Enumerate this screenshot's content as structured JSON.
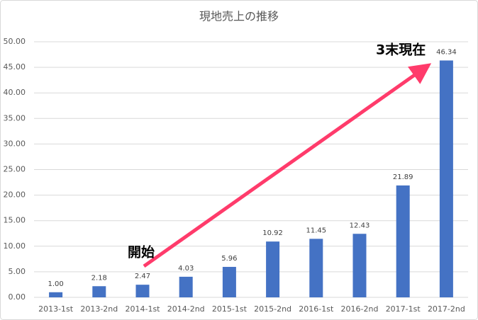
{
  "chart_data": {
    "type": "bar",
    "title": "現地売上の推移",
    "categories": [
      "2013-1st",
      "2013-2nd",
      "2014-1st",
      "2014-2nd",
      "2015-1st",
      "2015-2nd",
      "2016-1st",
      "2016-2nd",
      "2017-1st",
      "2017-2nd"
    ],
    "values": [
      1,
      2.18,
      2.47,
      4.03,
      5.96,
      10.92,
      11.45,
      12.43,
      21.89,
      46.34
    ],
    "value_labels": [
      "1.00",
      "2.18",
      "2.47",
      "4.03",
      "5.96",
      "10.92",
      "11.45",
      "12.43",
      "21.89",
      "46.34"
    ],
    "color": "#4472c4",
    "ylim": [
      0,
      50
    ],
    "yticks": [
      {
        "value": 0,
        "label": "0.00"
      },
      {
        "value": 5,
        "label": "5.00"
      },
      {
        "value": 10,
        "label": "10.00"
      },
      {
        "value": 15,
        "label": "15.00"
      },
      {
        "value": 20,
        "label": "20.00"
      },
      {
        "value": 25,
        "label": "25.00"
      },
      {
        "value": 30,
        "label": "30.00"
      },
      {
        "value": 35,
        "label": "35.00"
      },
      {
        "value": 40,
        "label": "40.00"
      },
      {
        "value": 45,
        "label": "45.00"
      },
      {
        "value": 50,
        "label": "50.00"
      }
    ],
    "grid": true,
    "annotations": [
      "開始",
      "3末現在"
    ]
  }
}
